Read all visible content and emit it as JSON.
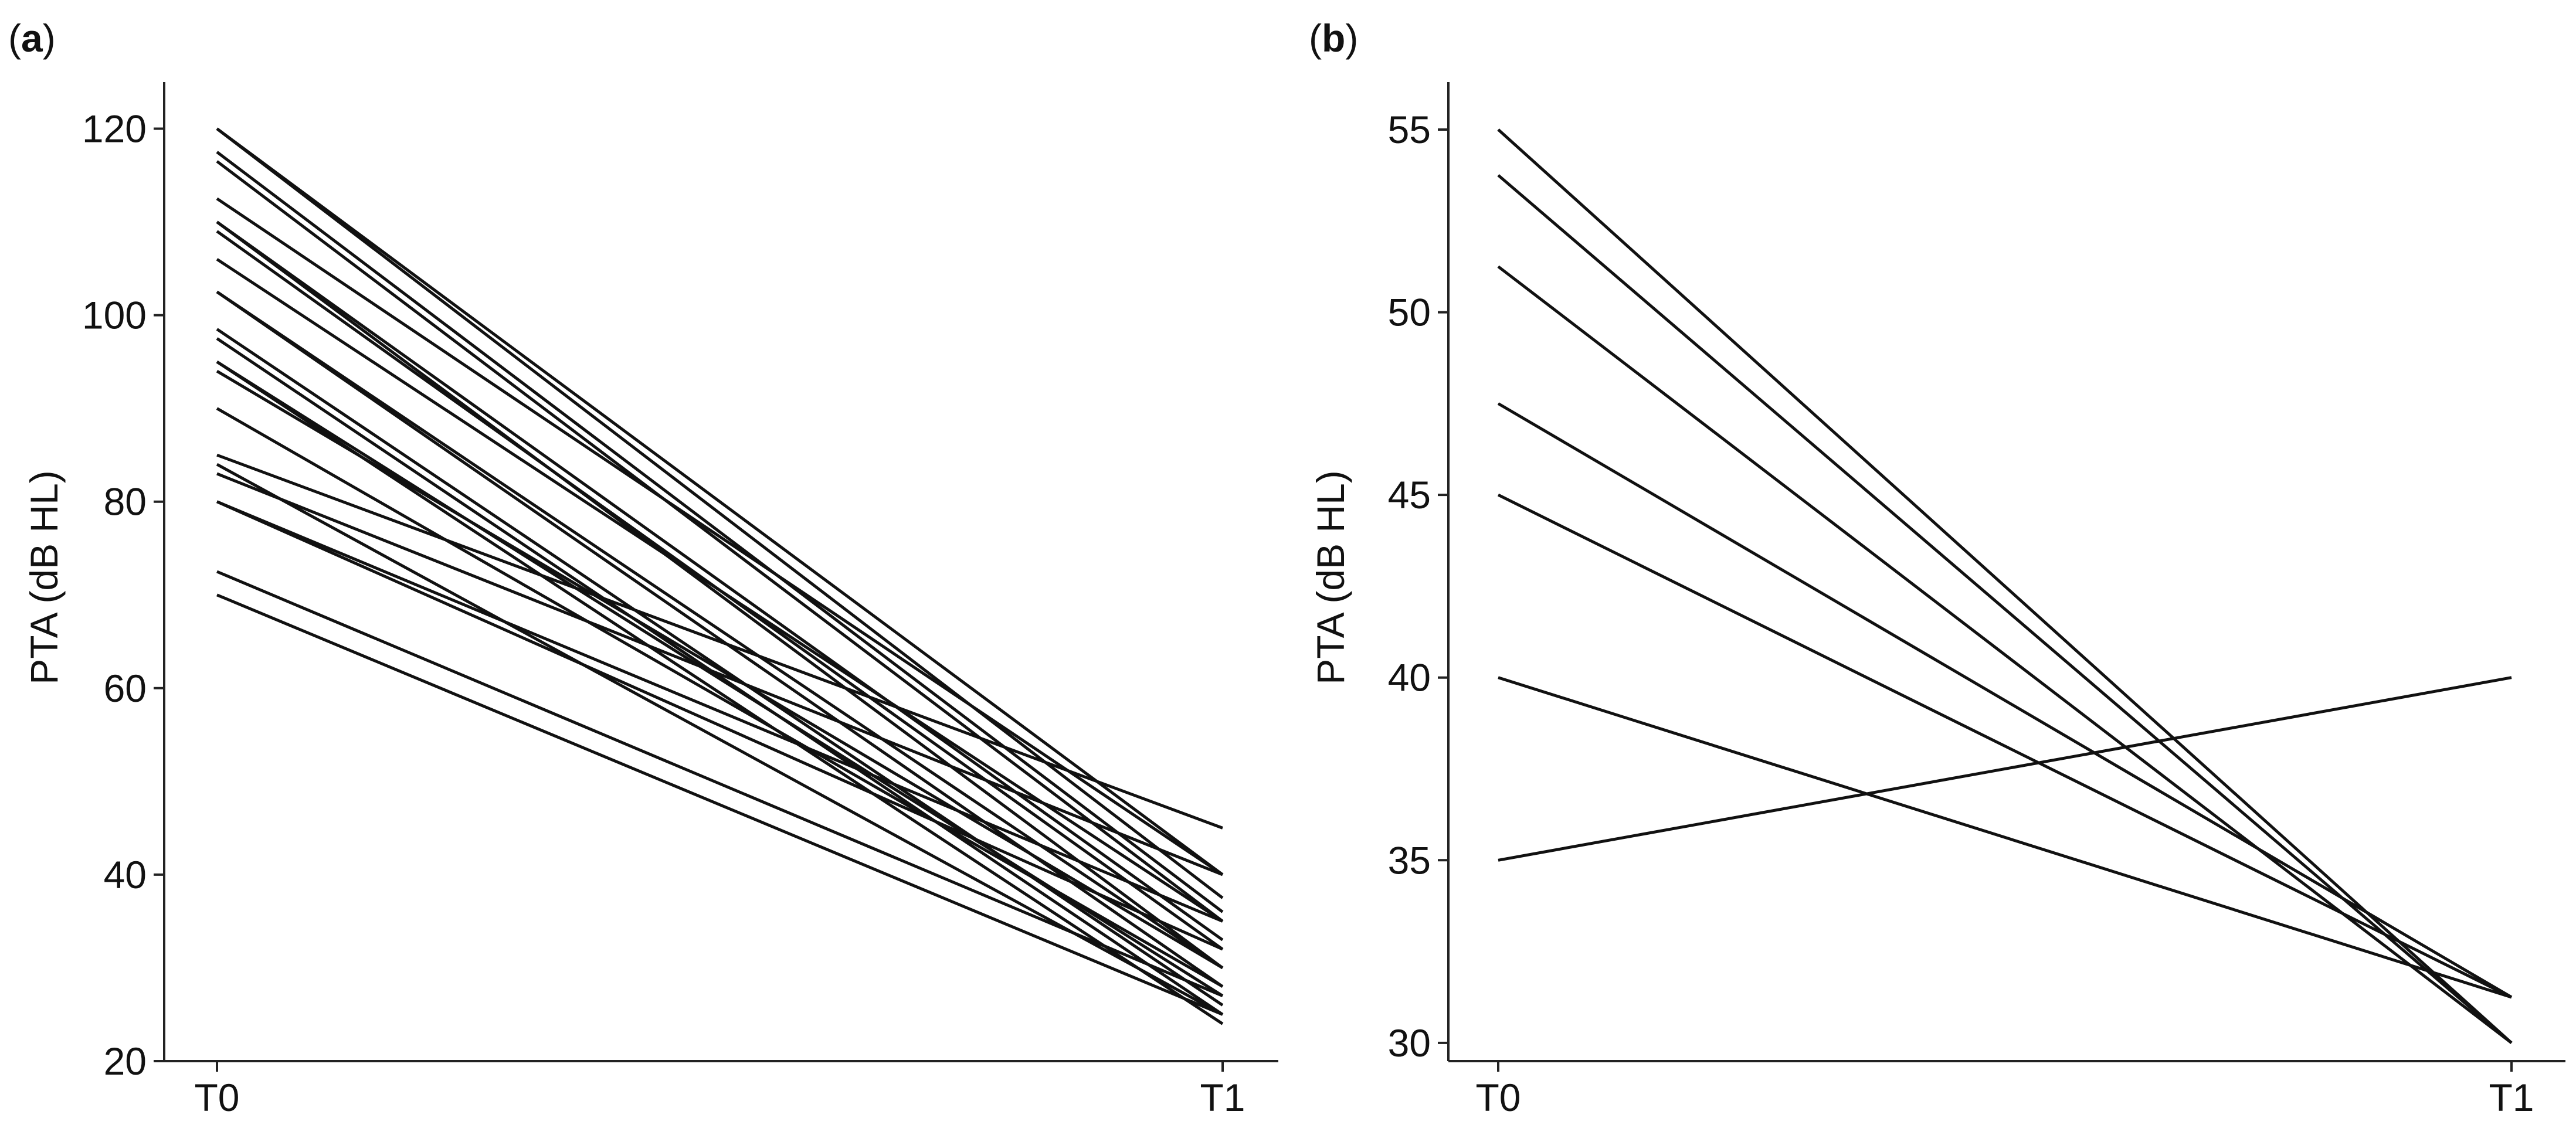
{
  "chart_data": [
    {
      "panel_label_open": "(",
      "panel_label": "a",
      "panel_label_close": ")",
      "type": "line",
      "x": [
        "T0",
        "T1"
      ],
      "ylabel": "PTA (dB HL)",
      "xlabel": "",
      "ylim": [
        20,
        125
      ],
      "yticks": [
        20,
        40,
        60,
        80,
        100,
        120
      ],
      "grid": false,
      "series": [
        {
          "values": [
            120,
            40
          ]
        },
        {
          "values": [
            120,
            37.5
          ]
        },
        {
          "values": [
            117.5,
            36
          ]
        },
        {
          "values": [
            116.5,
            35
          ]
        },
        {
          "values": [
            112.5,
            40
          ]
        },
        {
          "values": [
            110,
            33
          ]
        },
        {
          "values": [
            110,
            30
          ]
        },
        {
          "values": [
            109,
            32
          ]
        },
        {
          "values": [
            106,
            35
          ]
        },
        {
          "values": [
            102.5,
            30
          ]
        },
        {
          "values": [
            102.5,
            28
          ]
        },
        {
          "values": [
            98.5,
            26
          ]
        },
        {
          "values": [
            97.5,
            25
          ]
        },
        {
          "values": [
            95,
            24
          ]
        },
        {
          "values": [
            95,
            27
          ]
        },
        {
          "values": [
            94,
            30
          ]
        },
        {
          "values": [
            90,
            28
          ]
        },
        {
          "values": [
            85,
            45
          ]
        },
        {
          "values": [
            84,
            25
          ]
        },
        {
          "values": [
            83,
            40
          ]
        },
        {
          "values": [
            80,
            32
          ]
        },
        {
          "values": [
            80,
            35
          ]
        },
        {
          "values": [
            72.5,
            27
          ]
        },
        {
          "values": [
            70,
            25
          ]
        }
      ]
    },
    {
      "panel_label_open": "(",
      "panel_label": "b",
      "panel_label_close": ")",
      "type": "line",
      "x": [
        "T0",
        "T1"
      ],
      "ylabel": "PTA (dB HL)",
      "xlabel": "",
      "ylim": [
        29.5,
        56.3
      ],
      "yticks": [
        30,
        35,
        40,
        45,
        50,
        55
      ],
      "grid": false,
      "series": [
        {
          "values": [
            55,
            30
          ]
        },
        {
          "values": [
            53.75,
            30
          ]
        },
        {
          "values": [
            51.25,
            30
          ]
        },
        {
          "values": [
            47.5,
            31.25
          ]
        },
        {
          "values": [
            45,
            31.25
          ]
        },
        {
          "values": [
            40,
            31.25
          ]
        },
        {
          "values": [
            35,
            40
          ]
        }
      ]
    }
  ]
}
